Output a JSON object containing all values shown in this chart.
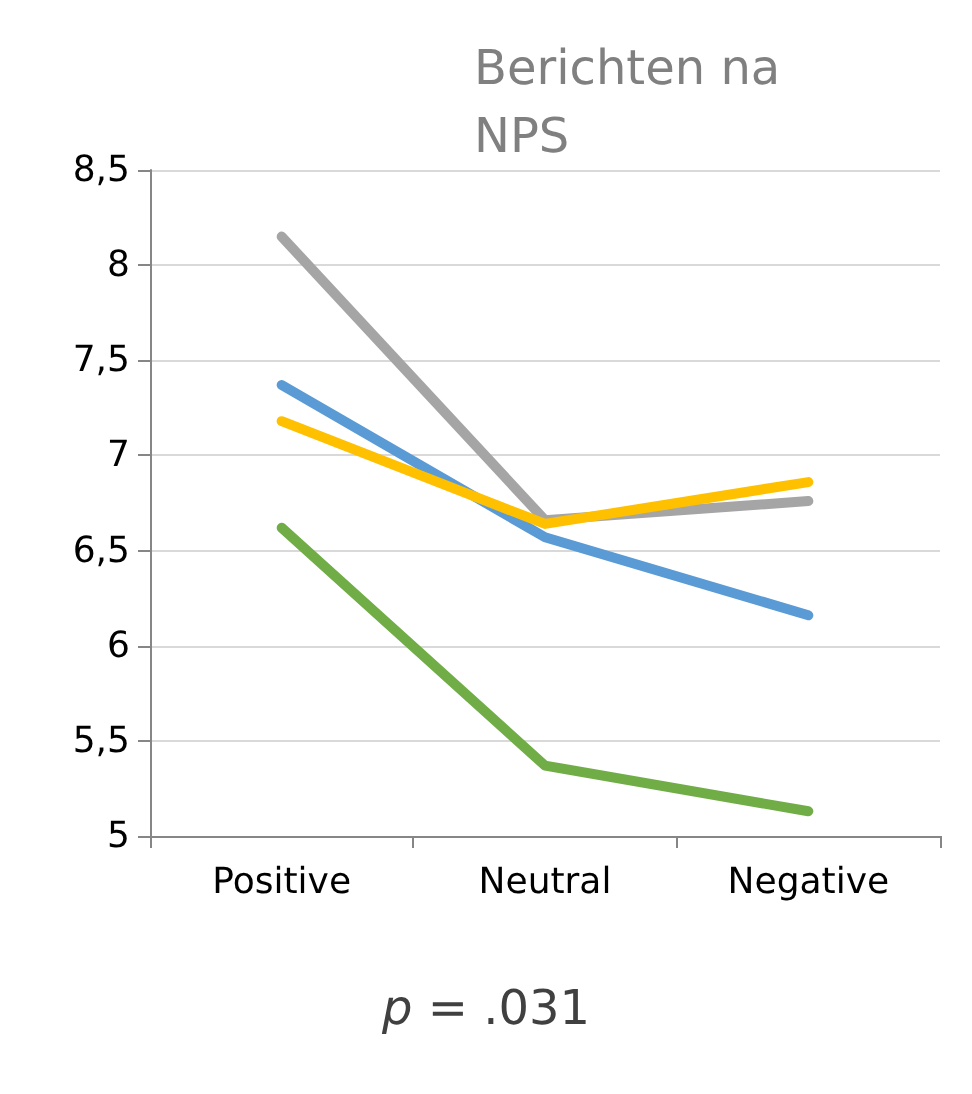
{
  "chart_data": {
    "type": "line",
    "title": "Berichten na\nNPS",
    "categories": [
      "Positive",
      "Neutral",
      "Negative"
    ],
    "series": [
      {
        "color": "#a5a5a5",
        "values": [
          8.15,
          6.66,
          6.76
        ]
      },
      {
        "color": "#5b9bd5",
        "values": [
          7.37,
          6.57,
          6.16
        ]
      },
      {
        "color": "#ffc000",
        "values": [
          7.18,
          6.64,
          6.86
        ]
      },
      {
        "color": "#70ad47",
        "values": [
          6.62,
          5.37,
          5.13
        ]
      }
    ],
    "ylim": [
      5,
      8.5
    ],
    "yticks": [
      {
        "value": 5,
        "label": "5"
      },
      {
        "value": 5.5,
        "label": "5,5"
      },
      {
        "value": 6,
        "label": "6"
      },
      {
        "value": 6.5,
        "label": "6,5"
      },
      {
        "value": 7,
        "label": "7"
      },
      {
        "value": 7.5,
        "label": "7,5"
      },
      {
        "value": 8,
        "label": "8"
      },
      {
        "value": 8.5,
        "label": "8,5"
      }
    ],
    "grid": "y",
    "marker": "none",
    "line_style": "solid",
    "annotations": [
      "p = .031"
    ]
  }
}
